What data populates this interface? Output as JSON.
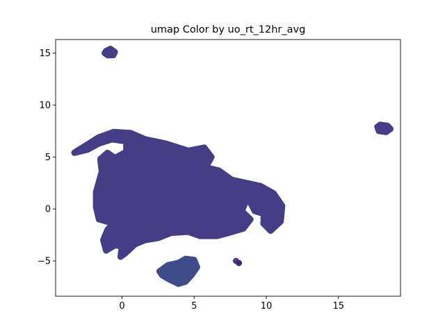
{
  "chart_data": {
    "type": "scatter",
    "title": "umap Color by uo_rt_12hr_avg",
    "xlabel": "",
    "ylabel": "",
    "xlim": [
      -4.6,
      19.3
    ],
    "ylim": [
      -8.4,
      16.3
    ],
    "x_ticks": [
      0,
      5,
      10,
      15
    ],
    "y_ticks": [
      -5,
      0,
      5,
      10,
      15
    ],
    "x_tick_labels": [
      "0",
      "5",
      "10",
      "15"
    ],
    "y_tick_labels": [
      "−5",
      "0",
      "5",
      "10",
      "15"
    ],
    "colormap": "viridis",
    "point_color": "#433e85",
    "grid": false,
    "clusters": [
      {
        "name": "main",
        "color": "#433e85",
        "outline": [
          [
            -3.1,
            5.6
          ],
          [
            -2.4,
            6.2
          ],
          [
            -1.6,
            6.9
          ],
          [
            -0.6,
            7.4
          ],
          [
            0.6,
            7.3
          ],
          [
            1.6,
            6.7
          ],
          [
            3.0,
            6.3
          ],
          [
            4.6,
            5.6
          ],
          [
            5.7,
            5.9
          ],
          [
            6.2,
            5.0
          ],
          [
            5.8,
            4.0
          ],
          [
            6.7,
            3.7
          ],
          [
            7.6,
            2.8
          ],
          [
            8.6,
            2.5
          ],
          [
            9.6,
            2.2
          ],
          [
            10.5,
            1.5
          ],
          [
            11.1,
            0.3
          ],
          [
            11.0,
            -1.2
          ],
          [
            10.3,
            -2.1
          ],
          [
            9.8,
            -1.4
          ],
          [
            9.9,
            -0.5
          ],
          [
            9.2,
            -0.2
          ],
          [
            8.9,
            0.6
          ],
          [
            8.7,
            1.1
          ],
          [
            8.3,
            -0.2
          ],
          [
            8.9,
            -1.0
          ],
          [
            8.4,
            -1.9
          ],
          [
            7.4,
            -2.3
          ],
          [
            6.6,
            -2.6
          ],
          [
            5.4,
            -2.6
          ],
          [
            4.6,
            -2.2
          ],
          [
            3.4,
            -2.3
          ],
          [
            2.5,
            -2.8
          ],
          [
            1.6,
            -3.0
          ],
          [
            0.9,
            -3.4
          ],
          [
            0.2,
            -4.3
          ],
          [
            -0.1,
            -4.6
          ],
          [
            0.0,
            -3.6
          ],
          [
            -0.5,
            -3.5
          ],
          [
            -1.1,
            -4.0
          ],
          [
            -1.3,
            -3.0
          ],
          [
            -1.0,
            -2.0
          ],
          [
            -0.6,
            -1.4
          ],
          [
            -1.6,
            -1.0
          ],
          [
            -1.8,
            0.2
          ],
          [
            -1.8,
            1.6
          ],
          [
            -1.4,
            3.6
          ],
          [
            -1.5,
            4.8
          ],
          [
            -1.0,
            5.4
          ],
          [
            -0.5,
            4.9
          ],
          [
            0.3,
            5.5
          ],
          [
            0.3,
            6.5
          ],
          [
            -0.7,
            6.7
          ],
          [
            -1.6,
            6.3
          ],
          [
            -2.4,
            5.7
          ],
          [
            -3.3,
            5.4
          ]
        ]
      },
      {
        "name": "top-left",
        "color": "#433e85",
        "outline": [
          [
            -1.1,
            15.2
          ],
          [
            -0.8,
            15.4
          ],
          [
            -0.5,
            15.1
          ],
          [
            -0.6,
            14.8
          ],
          [
            -1.0,
            14.8
          ],
          [
            -1.2,
            15.0
          ]
        ]
      },
      {
        "name": "right",
        "color": "#433e85",
        "outline": [
          [
            17.7,
            7.9
          ],
          [
            17.9,
            8.1
          ],
          [
            18.4,
            8.0
          ],
          [
            18.6,
            7.7
          ],
          [
            18.3,
            7.4
          ],
          [
            17.8,
            7.5
          ]
        ]
      },
      {
        "name": "bottom",
        "color": "#3e4c8a",
        "outline": [
          [
            2.6,
            -6.0
          ],
          [
            3.2,
            -5.4
          ],
          [
            3.9,
            -5.2
          ],
          [
            4.4,
            -4.8
          ],
          [
            5.0,
            -4.9
          ],
          [
            5.2,
            -5.6
          ],
          [
            4.8,
            -6.4
          ],
          [
            4.4,
            -7.0
          ],
          [
            3.9,
            -7.2
          ],
          [
            3.3,
            -6.8
          ],
          [
            2.8,
            -6.4
          ]
        ]
      }
    ],
    "singleton_points": [
      {
        "x": 9.8,
        "y": -0.9,
        "color": "#433e85"
      },
      {
        "x": 7.9,
        "y": -5.0,
        "color": "#433e85"
      },
      {
        "x": 8.1,
        "y": -5.2,
        "color": "#482475"
      }
    ]
  }
}
